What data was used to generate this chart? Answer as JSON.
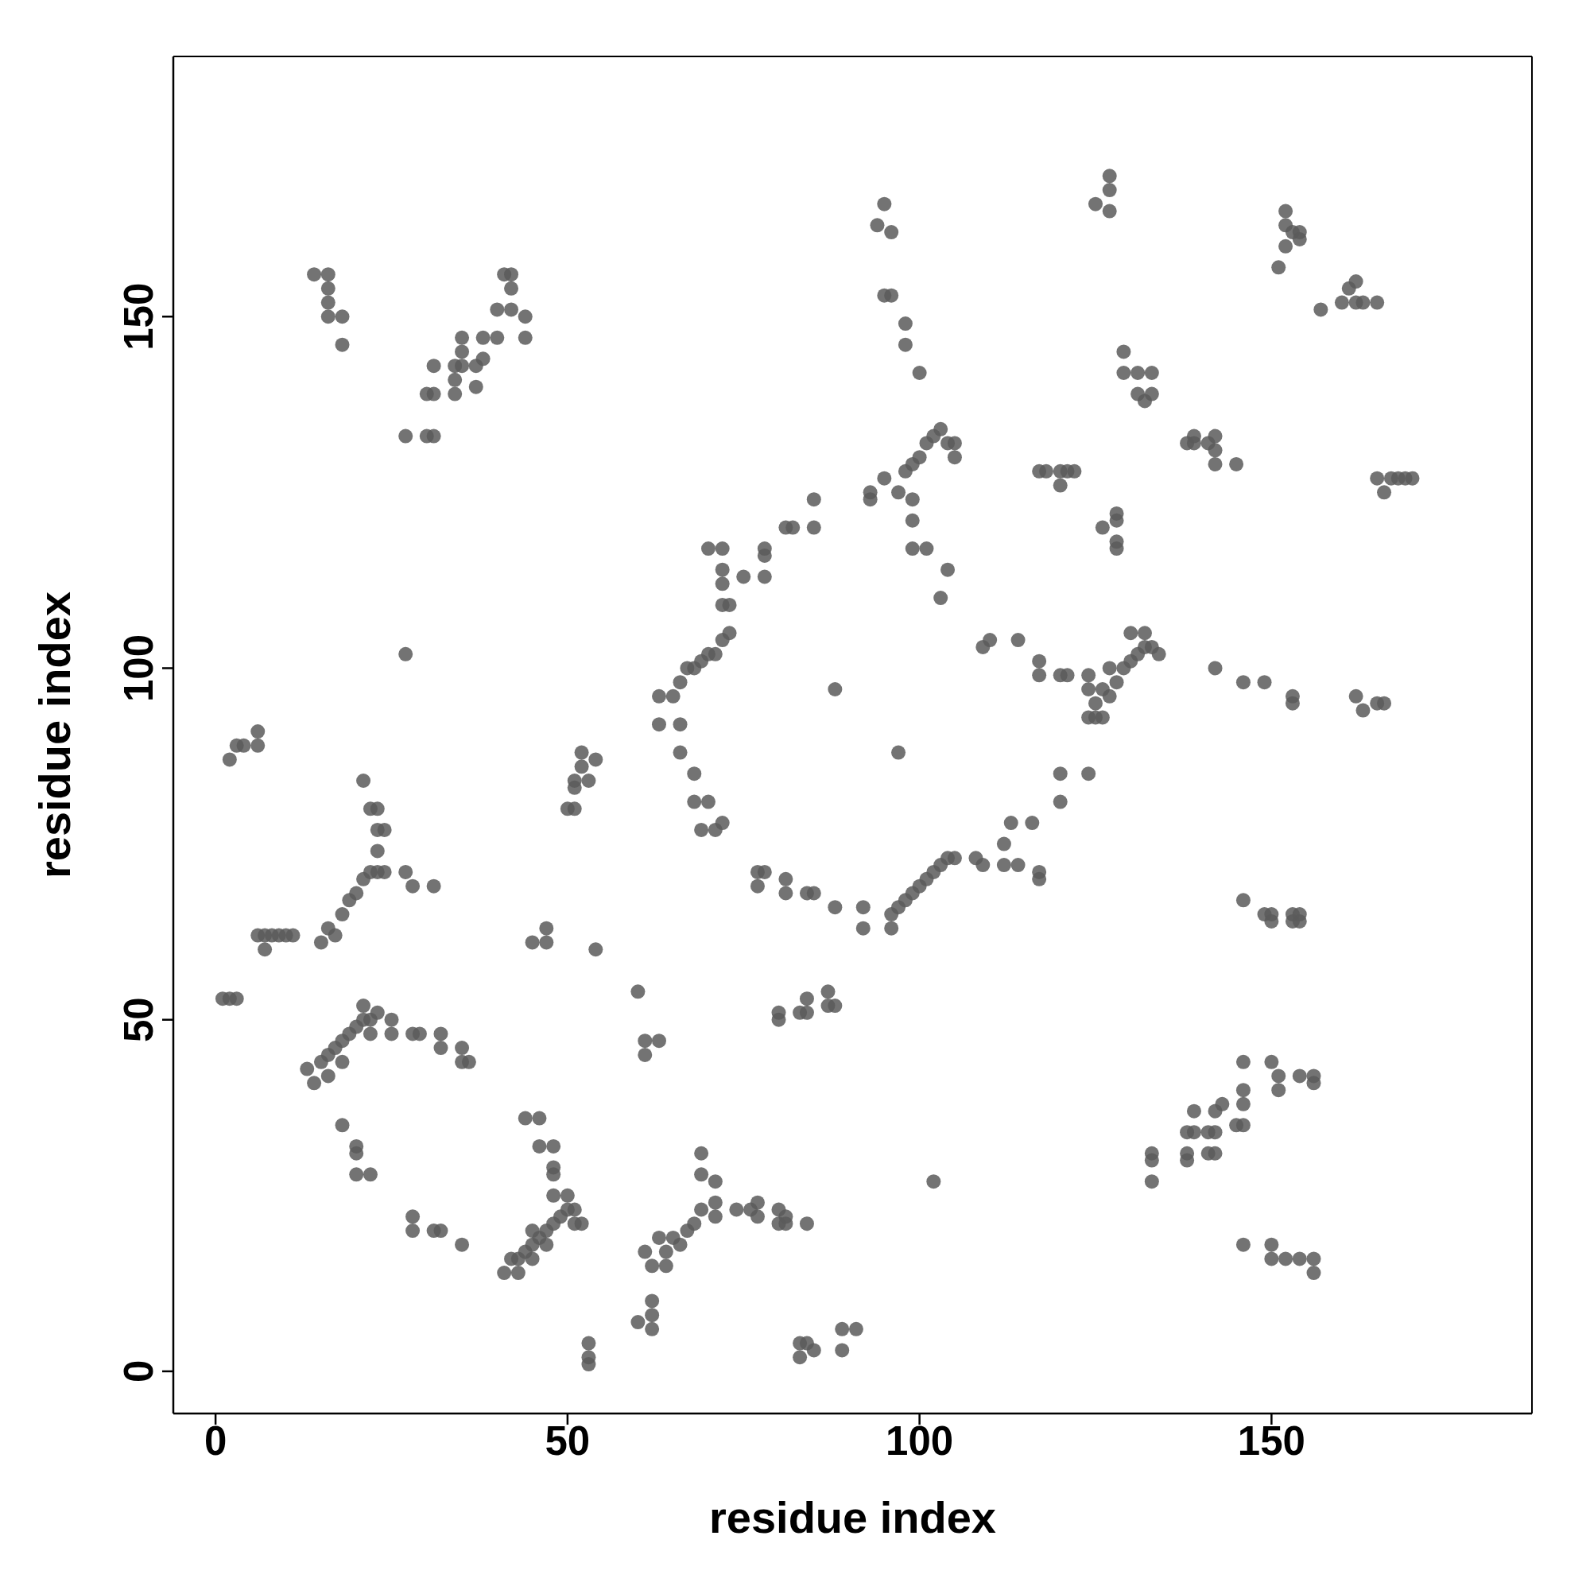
{
  "chart_data": {
    "type": "scatter",
    "xlabel": "residue index",
    "ylabel": "residue index",
    "xlim": [
      -6,
      187
    ],
    "ylim": [
      -6,
      187
    ],
    "xticks": [
      0,
      50,
      100,
      150
    ],
    "yticks": [
      0,
      50,
      100,
      150
    ],
    "grid": false,
    "legend": false,
    "marker": "circle",
    "series": [
      {
        "color": "#5a5a5a",
        "x": [
          1,
          2,
          3,
          2,
          3,
          4,
          6,
          6,
          6,
          7,
          8,
          9,
          10,
          11,
          7,
          13,
          14,
          15,
          16,
          17,
          18,
          19,
          20,
          21,
          21,
          22,
          23,
          25,
          25,
          18,
          16,
          22,
          28,
          29,
          32,
          32,
          35,
          36,
          35,
          15,
          16,
          17,
          18,
          19,
          20,
          21,
          22,
          23,
          24,
          23,
          23,
          24,
          22,
          21,
          23,
          27,
          28,
          31,
          27,
          18,
          20,
          20,
          20,
          22,
          28,
          28,
          31,
          32,
          35,
          27,
          30,
          31,
          14,
          16,
          16,
          16,
          16,
          18,
          18,
          30,
          31,
          31,
          34,
          35,
          34,
          34,
          35,
          35,
          37,
          37,
          38,
          38,
          40,
          40,
          42,
          41,
          42,
          42,
          44,
          44,
          44,
          46,
          46,
          48,
          48,
          48,
          48,
          50,
          41,
          42,
          43,
          43,
          44,
          45,
          45,
          46,
          47,
          47,
          48,
          49,
          50,
          51,
          51,
          52,
          45,
          53,
          53,
          53,
          45,
          47,
          47,
          54,
          50,
          51,
          51,
          51,
          52,
          52,
          54,
          53,
          60,
          61,
          61,
          63,
          60,
          62,
          62,
          62,
          61,
          62,
          63,
          64,
          64,
          65,
          66,
          67,
          68,
          69,
          69,
          69,
          71,
          71,
          71,
          74,
          76,
          77,
          77,
          80,
          81,
          80,
          81,
          84,
          83,
          84,
          83,
          85,
          89,
          91,
          89,
          63,
          65,
          66,
          67,
          68,
          69,
          70,
          71,
          72,
          73,
          72,
          72,
          72,
          73,
          70,
          72,
          75,
          78,
          78,
          78,
          81,
          82,
          85,
          85,
          63,
          66,
          66,
          68,
          68,
          70,
          69,
          71,
          72,
          77,
          78,
          77,
          81,
          81,
          84,
          85,
          88,
          92,
          92,
          88,
          80,
          80,
          83,
          84,
          84,
          87,
          87,
          88,
          96,
          96,
          97,
          98,
          99,
          100,
          101,
          102,
          103,
          104,
          105,
          108,
          109,
          112,
          114,
          112,
          113,
          116,
          117,
          117,
          120,
          120,
          124,
          97,
          102,
          93,
          93,
          95,
          97,
          98,
          99,
          100,
          101,
          102,
          103,
          104,
          105,
          105,
          99,
          99,
          101,
          103,
          104,
          99,
          94,
          95,
          96,
          95,
          96,
          98,
          98,
          100,
          109,
          110,
          114,
          117,
          117,
          120,
          121,
          124,
          124,
          125,
          124,
          125,
          126,
          127,
          128,
          129,
          130,
          131,
          132,
          133,
          134,
          130,
          132,
          126,
          127,
          117,
          118,
          120,
          121,
          122,
          120,
          126,
          128,
          128,
          128,
          128,
          125,
          127,
          127,
          127,
          129,
          129,
          131,
          133,
          131,
          132,
          133,
          138,
          139,
          139,
          141,
          142,
          142,
          142,
          145,
          142,
          146,
          149,
          146,
          149,
          150,
          150,
          153,
          154,
          153,
          154,
          153,
          153,
          162,
          163,
          165,
          166,
          151,
          152,
          152,
          152,
          153,
          154,
          154,
          157,
          160,
          162,
          161,
          162,
          163,
          165,
          165,
          166,
          167,
          168,
          169,
          170,
          133,
          133,
          133,
          138,
          138,
          138,
          139,
          139,
          141,
          142,
          141,
          142,
          142,
          143,
          145,
          146,
          146,
          146,
          146,
          150,
          151,
          151,
          154,
          156,
          156,
          146,
          150,
          150,
          152,
          154,
          156,
          156
        ],
        "values": [
          53,
          53,
          53,
          87,
          89,
          89,
          91,
          89,
          62,
          62,
          62,
          62,
          62,
          62,
          60,
          43,
          41,
          44,
          45,
          46,
          47,
          48,
          49,
          52,
          50,
          50,
          51,
          50,
          48,
          44,
          42,
          48,
          48,
          48,
          48,
          46,
          46,
          44,
          44,
          61,
          63,
          62,
          65,
          67,
          68,
          70,
          71,
          71,
          71,
          74,
          77,
          77,
          80,
          84,
          80,
          71,
          69,
          69,
          102,
          35,
          32,
          31,
          28,
          28,
          22,
          20,
          20,
          20,
          18,
          133,
          133,
          133,
          156,
          156,
          154,
          152,
          150,
          150,
          146,
          139,
          139,
          143,
          143,
          143,
          141,
          139,
          147,
          145,
          140,
          143,
          144,
          147,
          147,
          151,
          151,
          156,
          156,
          154,
          150,
          147,
          36,
          36,
          32,
          32,
          29,
          28,
          25,
          25,
          14,
          16,
          14,
          16,
          17,
          16,
          18,
          19,
          18,
          20,
          21,
          22,
          23,
          23,
          21,
          21,
          20,
          4,
          2,
          1,
          61,
          63,
          61,
          60,
          80,
          80,
          84,
          83,
          88,
          86,
          87,
          84,
          54,
          47,
          45,
          47,
          7,
          10,
          8,
          6,
          17,
          15,
          19,
          17,
          15,
          19,
          18,
          20,
          21,
          23,
          28,
          31,
          27,
          24,
          22,
          23,
          23,
          24,
          22,
          23,
          22,
          21,
          21,
          21,
          4,
          4,
          2,
          3,
          6,
          6,
          3,
          96,
          96,
          98,
          100,
          100,
          101,
          102,
          102,
          104,
          105,
          109,
          112,
          114,
          109,
          117,
          117,
          113,
          117,
          113,
          116,
          120,
          120,
          120,
          124,
          92,
          92,
          88,
          85,
          81,
          81,
          77,
          77,
          78,
          71,
          71,
          69,
          70,
          68,
          68,
          68,
          66,
          66,
          63,
          97,
          51,
          50,
          51,
          51,
          53,
          54,
          52,
          52,
          63,
          65,
          66,
          67,
          68,
          69,
          70,
          71,
          72,
          73,
          73,
          73,
          72,
          72,
          72,
          75,
          78,
          78,
          71,
          70,
          81,
          85,
          85,
          88,
          27,
          125,
          124,
          127,
          125,
          128,
          129,
          130,
          132,
          133,
          134,
          132,
          132,
          130,
          121,
          117,
          117,
          110,
          114,
          124,
          163,
          166,
          162,
          153,
          153,
          149,
          146,
          142,
          103,
          104,
          104,
          101,
          99,
          99,
          99,
          99,
          97,
          95,
          93,
          93,
          93,
          96,
          98,
          100,
          101,
          102,
          103,
          103,
          102,
          105,
          105,
          97,
          100,
          128,
          128,
          128,
          128,
          128,
          126,
          120,
          122,
          121,
          118,
          117,
          166,
          170,
          168,
          165,
          145,
          142,
          142,
          142,
          139,
          138,
          139,
          132,
          132,
          133,
          132,
          133,
          131,
          129,
          129,
          100,
          98,
          98,
          67,
          65,
          65,
          64,
          65,
          64,
          64,
          65,
          96,
          95,
          96,
          94,
          95,
          95,
          157,
          165,
          163,
          160,
          162,
          162,
          161,
          151,
          152,
          152,
          154,
          155,
          152,
          152,
          127,
          125,
          127,
          127,
          127,
          127,
          31,
          30,
          27,
          31,
          30,
          34,
          34,
          37,
          31,
          31,
          34,
          34,
          37,
          38,
          35,
          35,
          40,
          38,
          44,
          44,
          42,
          40,
          42,
          42,
          41,
          18,
          18,
          16,
          16,
          16,
          16,
          14
        ]
      }
    ]
  }
}
